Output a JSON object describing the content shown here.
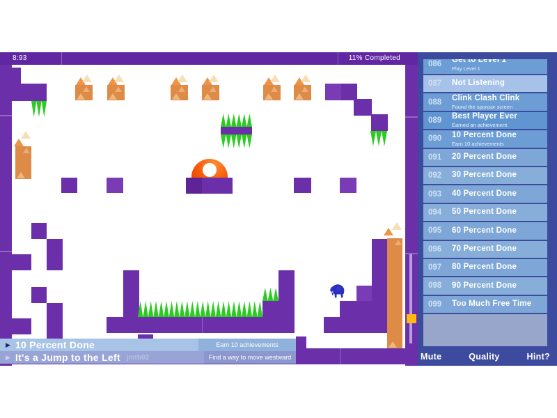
{
  "hud": {
    "timer": "8:93",
    "completed": "11% Completed"
  },
  "menu": {
    "mute": "Mute",
    "quality": "Quality",
    "hint": "Hint?"
  },
  "banners": [
    {
      "title": "10 Percent Done",
      "detail": "Earn 10 achievements",
      "watermark": ""
    },
    {
      "title": "It's a Jump to the Left",
      "detail": "Find a way to move westward",
      "watermark": "jmtb02"
    }
  ],
  "achievements": [
    {
      "num": "086",
      "title": "Get to Level 1",
      "subtitle": "Play Level 1",
      "state": "unlocked",
      "clipped": true
    },
    {
      "num": "087",
      "title": "Not Listening",
      "subtitle": "",
      "state": "highlight"
    },
    {
      "num": "088",
      "title": "Clink Clash Clink",
      "subtitle": "Found the sponsor screen",
      "state": "unlocked"
    },
    {
      "num": "089",
      "title": "Best Player Ever",
      "subtitle": "Earned an achievement",
      "state": "unlocked"
    },
    {
      "num": "090",
      "title": "10 Percent Done",
      "subtitle": "Earn 10 achievements",
      "state": "unlocked"
    },
    {
      "num": "091",
      "title": "20 Percent Done",
      "subtitle": "",
      "state": "locked"
    },
    {
      "num": "092",
      "title": "30 Percent Done",
      "subtitle": "",
      "state": "locked"
    },
    {
      "num": "093",
      "title": "40 Percent Done",
      "subtitle": "",
      "state": "locked"
    },
    {
      "num": "094",
      "title": "50 Percent Done",
      "subtitle": "",
      "state": "locked"
    },
    {
      "num": "095",
      "title": "60 Percent Done",
      "subtitle": "",
      "state": "locked"
    },
    {
      "num": "096",
      "title": "70 Percent Done",
      "subtitle": "",
      "state": "locked"
    },
    {
      "num": "097",
      "title": "80 Percent Done",
      "subtitle": "",
      "state": "locked"
    },
    {
      "num": "098",
      "title": "90 Percent Done",
      "subtitle": "",
      "state": "locked"
    },
    {
      "num": "099",
      "title": "Too Much Free Time",
      "subtitle": "",
      "state": "locked"
    }
  ],
  "colors": {
    "purple": "#6b2fa9",
    "purple_dark": "#5e2496",
    "purple_light": "#7a3cb5",
    "spike_green": "#2bcb22",
    "crate_orange": "#dd8b47",
    "marker_orange": "#ef9446",
    "navy": "#3c4b9e",
    "row_unlocked": "#6095d2",
    "row_locked": "#87add9",
    "row_highlight": "#a6c2e8",
    "list_footer": "#97a6ca",
    "banner1_bg": "#a7c3e5",
    "banner2_bg": "#98a3d6",
    "ball_orange": "#f85808",
    "elephant_blue": "#2a2fc0",
    "pickup_yellow": "#ffb90f"
  }
}
